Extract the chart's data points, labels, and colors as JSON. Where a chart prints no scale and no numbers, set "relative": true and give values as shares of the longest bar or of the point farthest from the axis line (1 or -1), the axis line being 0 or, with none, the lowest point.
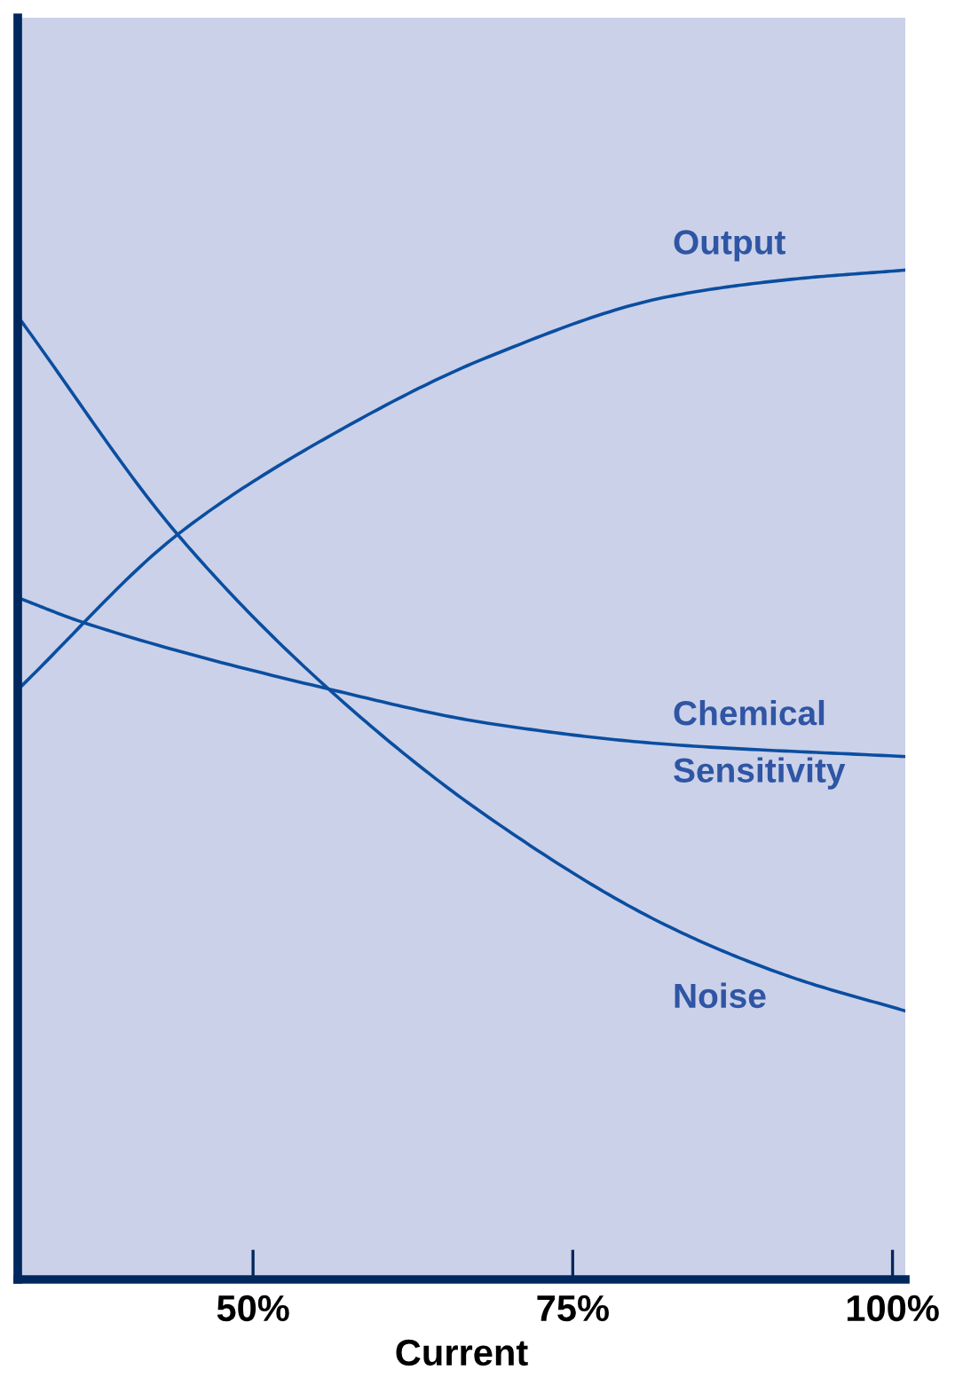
{
  "chart_data": {
    "type": "line",
    "relative": true,
    "xlabel": "Current",
    "xlim": [
      31.6,
      101
    ],
    "xticks": [
      {
        "value": 50,
        "label": "50%"
      },
      {
        "value": 75,
        "label": "75%"
      },
      {
        "value": 100,
        "label": "100%"
      }
    ],
    "marker": "none",
    "line_style": "solid",
    "grid": false,
    "legend": false,
    "series": [
      {
        "name": "Output",
        "color": "#0a4ea0",
        "x": [
          31.9,
          44.1,
          55.9,
          68.4,
          82.6,
          92.2,
          101
        ],
        "values": [
          0.588,
          0.738,
          0.835,
          0.914,
          0.974,
          0.991,
          1.0
        ]
      },
      {
        "name": "Chemical Sensitivity",
        "color": "#0a4ea0",
        "x": [
          31.9,
          36.7,
          55.9,
          68.4,
          82.6,
          101
        ],
        "values": [
          0.674,
          0.651,
          0.585,
          0.551,
          0.53,
          0.518
        ]
      },
      {
        "name": "Noise",
        "color": "#0a4ea0",
        "x": [
          31.9,
          44.1,
          55.9,
          68.4,
          82.6,
          92.2,
          101
        ],
        "values": [
          0.949,
          0.738,
          0.585,
          0.458,
          0.349,
          0.299,
          0.266
        ]
      }
    ]
  }
}
